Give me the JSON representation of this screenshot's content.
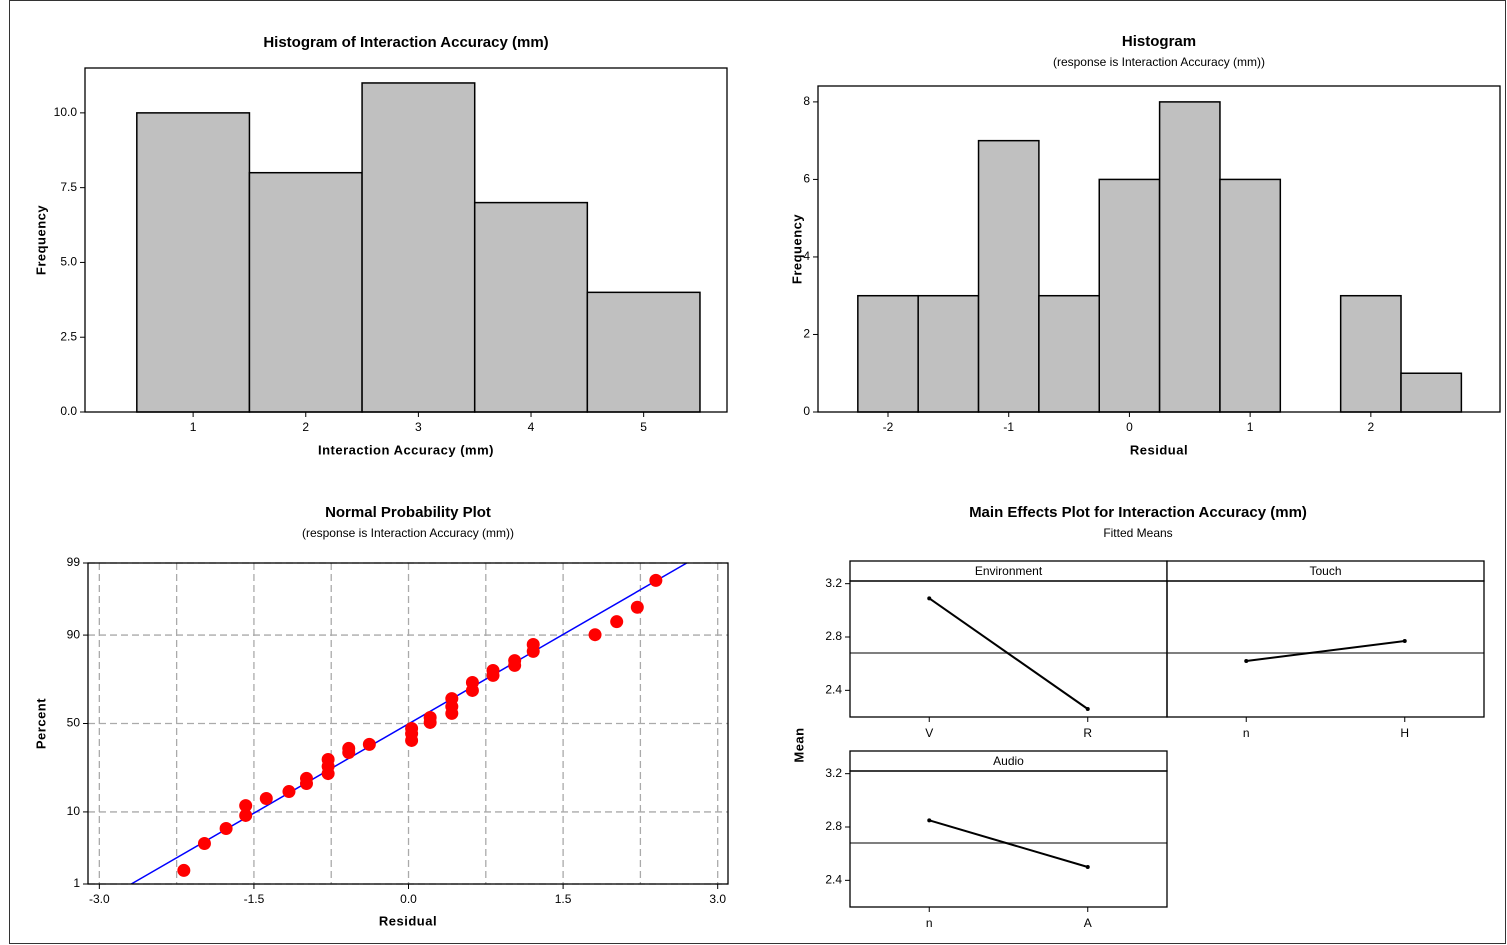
{
  "chart_data": [
    {
      "type": "histogram",
      "title": "Histogram of Interaction Accuracy (mm)",
      "x_label": "Interaction Accuracy (mm)",
      "y_label": "Frequency",
      "bins": [
        0.5,
        1.5,
        2.5,
        3.5,
        4.5,
        5.5
      ],
      "values": [
        10,
        8,
        11,
        7,
        4
      ],
      "color": "#c0c0c0",
      "xlim": [
        0.04,
        5.74
      ],
      "ylim": [
        0,
        11.5
      ],
      "xticks": [
        1,
        2,
        3,
        4,
        5
      ],
      "yticks": [
        {
          "value": 0,
          "label": "0.0"
        },
        2.5,
        {
          "value": 5,
          "label": "5.0"
        },
        7.5,
        {
          "value": 10,
          "label": "10.0"
        }
      ]
    },
    {
      "type": "histogram",
      "title": "Histogram",
      "subtitle": "(response is Interaction Accuracy (mm))",
      "x_label": "Residual",
      "y_label": "Frequency",
      "bins": [
        -2.25,
        -1.75,
        -1.25,
        -0.75,
        -0.25,
        0.25,
        0.75,
        1.25,
        1.75,
        2.25,
        2.75
      ],
      "values": [
        3,
        3,
        7,
        3,
        6,
        8,
        6,
        0,
        3,
        1
      ],
      "color": "#c0c0c0",
      "xlim": [
        -2.58,
        3.07
      ],
      "ylim": [
        0,
        8.41
      ],
      "xticks": [
        -2,
        -1,
        0,
        1,
        2
      ],
      "yticks": [
        0,
        2,
        4,
        6,
        8
      ]
    },
    {
      "type": "probability",
      "title": "Normal Probability Plot",
      "subtitle": "(response is Interaction Accuracy (mm))",
      "x_label": "Residual",
      "y_label": "Percent",
      "yscale": "probability",
      "grid": true,
      "color": "#ff0000",
      "x": [
        -2.18,
        -1.98,
        -1.77,
        -1.58,
        -1.58,
        -1.38,
        -1.16,
        -0.99,
        -0.99,
        -0.78,
        -0.78,
        -0.78,
        -0.58,
        -0.58,
        -0.38,
        0.03,
        0.03,
        0.03,
        0.21,
        0.21,
        0.42,
        0.42,
        0.42,
        0.62,
        0.62,
        0.82,
        0.82,
        1.03,
        1.03,
        1.21,
        1.21,
        1.81,
        2.02,
        2.22,
        2.4
      ],
      "values": [
        1.66,
        4.1,
        6.4,
        9.13,
        11.7,
        13.85,
        16.2,
        19.2,
        21.3,
        23.4,
        26.7,
        30.1,
        33.7,
        35.9,
        38.1,
        40.3,
        44.2,
        47.1,
        50.6,
        53.5,
        55.8,
        59.7,
        64.1,
        68.4,
        72.4,
        75.7,
        77.9,
        80.0,
        81.9,
        85.2,
        87.4,
        90.1,
        93.0,
        95.4,
        98.1
      ],
      "fit_line": {
        "x": [
          -2.69,
          2.7
        ],
        "values": [
          1,
          99
        ],
        "color": "#0000ff"
      },
      "xlim": [
        -3.11,
        3.1
      ],
      "ylim": [
        1,
        99
      ],
      "xticks": [
        {
          "value": -3,
          "label": "-3.0"
        },
        -1.5,
        {
          "value": 0,
          "label": "0.0"
        },
        1.5,
        {
          "value": 3,
          "label": "3.0"
        }
      ],
      "minor_xticks": [
        -2.25,
        -0.75,
        0.75,
        2.25
      ],
      "yticks": [
        1,
        10,
        50,
        90,
        99
      ]
    },
    {
      "type": "main_effects",
      "title": "Main Effects Plot for Interaction Accuracy (mm)",
      "subtitle": "Fitted Means",
      "y_label": "Mean",
      "overall_mean": 2.68,
      "ylim": [
        2.2,
        3.22
      ],
      "yticks": [
        2.4,
        2.8,
        3.2
      ],
      "color": "#000000",
      "panels": [
        {
          "name": "Environment",
          "categories": [
            "V",
            "R"
          ],
          "values": [
            3.09,
            2.26
          ]
        },
        {
          "name": "Touch",
          "categories": [
            "n",
            "H"
          ],
          "values": [
            2.62,
            2.77
          ]
        },
        {
          "name": "Audio",
          "categories": [
            "n",
            "A"
          ],
          "values": [
            2.85,
            2.5
          ]
        }
      ]
    }
  ]
}
